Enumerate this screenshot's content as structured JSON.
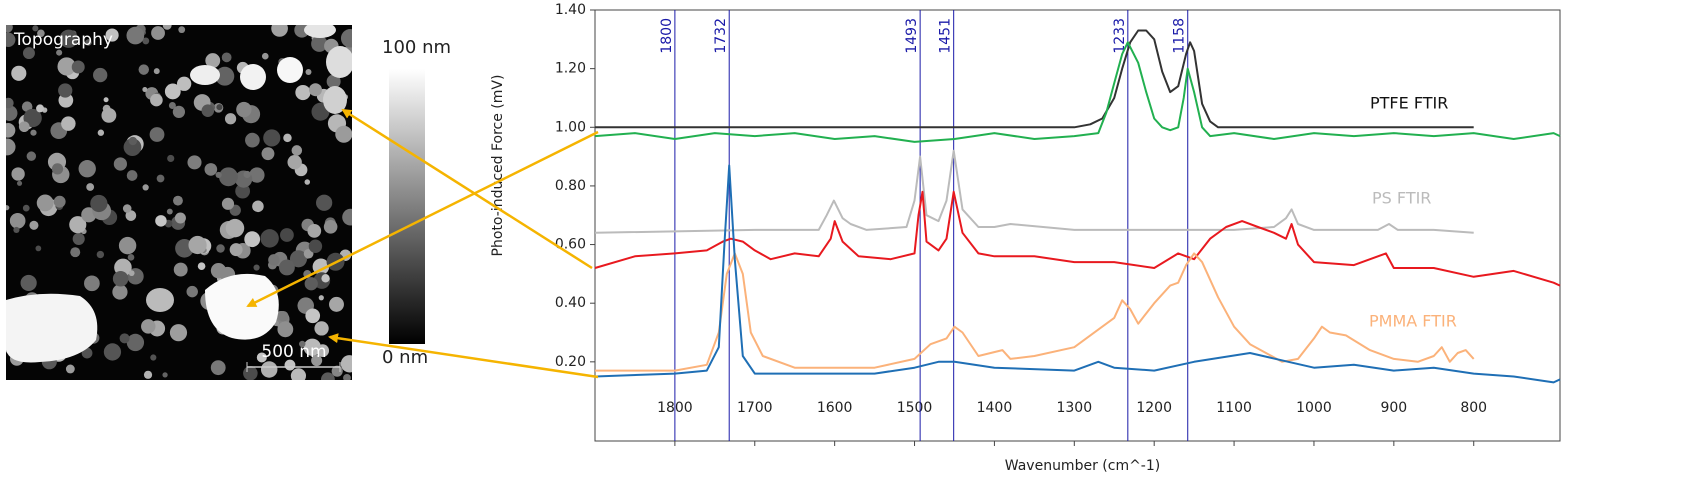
{
  "afm_image": {
    "label": "Topography",
    "scale_max": "100 nm",
    "scale_min": "0 nm",
    "scale_bar": "500 nm"
  },
  "chart_data": {
    "type": "line",
    "x_label": "Wavenumber (cm^-1)",
    "y_label": "Photo-induced Force (mV)",
    "xlim": [
      1900,
      692
    ],
    "xticks": [
      1800,
      1700,
      1600,
      1500,
      1400,
      1300,
      1200,
      1100,
      1000,
      900,
      800
    ],
    "ylim": [
      -0.07,
      1.4
    ],
    "yticks": [
      {
        "value": 0.2,
        "label": "0.20"
      },
      {
        "value": 0.4,
        "label": "0.40"
      },
      {
        "value": 0.6,
        "label": "0.60"
      },
      {
        "value": 0.8,
        "label": "0.80"
      },
      {
        "value": 1.0,
        "label": "1.00"
      },
      {
        "value": 1.2,
        "label": "1.20"
      },
      {
        "value": 1.4,
        "label": "1.40"
      }
    ],
    "reference_lines": [
      1800,
      1732,
      1493,
      1451,
      1233,
      1158
    ],
    "reference_line_color": "#1a1aa8",
    "series": [
      {
        "name": "PTFE FTIR",
        "color": "#333333",
        "x": [
          1900,
          1300,
          1280,
          1265,
          1250,
          1240,
          1230,
          1220,
          1210,
          1200,
          1190,
          1180,
          1170,
          1160,
          1155,
          1150,
          1140,
          1130,
          1120,
          1100,
          800
        ],
        "values": [
          1.0,
          1.0,
          1.01,
          1.03,
          1.1,
          1.2,
          1.29,
          1.33,
          1.33,
          1.3,
          1.19,
          1.12,
          1.14,
          1.25,
          1.29,
          1.26,
          1.08,
          1.02,
          1.0,
          1.0,
          1.0
        ]
      },
      {
        "color": "#22b050",
        "x": [
          1900,
          1850,
          1800,
          1750,
          1700,
          1650,
          1600,
          1550,
          1500,
          1450,
          1400,
          1350,
          1300,
          1270,
          1260,
          1250,
          1240,
          1233,
          1220,
          1210,
          1200,
          1190,
          1180,
          1170,
          1163,
          1158,
          1150,
          1140,
          1130,
          1100,
          1050,
          1000,
          950,
          900,
          850,
          800,
          750,
          700,
          692
        ],
        "values": [
          0.97,
          0.98,
          0.96,
          0.98,
          0.97,
          0.98,
          0.96,
          0.97,
          0.95,
          0.96,
          0.98,
          0.96,
          0.97,
          0.98,
          1.05,
          1.15,
          1.25,
          1.29,
          1.22,
          1.12,
          1.03,
          1.0,
          0.99,
          1.0,
          1.1,
          1.2,
          1.12,
          1.0,
          0.97,
          0.98,
          0.96,
          0.98,
          0.97,
          0.98,
          0.97,
          0.98,
          0.96,
          0.98,
          0.97
        ]
      },
      {
        "name": "PS FTIR",
        "color": "#bbbbbb",
        "x": [
          1900,
          1700,
          1620,
          1610,
          1601,
          1590,
          1580,
          1560,
          1510,
          1500,
          1493,
          1485,
          1470,
          1460,
          1451,
          1440,
          1420,
          1400,
          1380,
          1300,
          1200,
          1100,
          1050,
          1035,
          1028,
          1020,
          1000,
          920,
          906,
          895,
          850,
          800
        ],
        "values": [
          0.64,
          0.65,
          0.65,
          0.7,
          0.75,
          0.69,
          0.67,
          0.65,
          0.66,
          0.75,
          0.9,
          0.7,
          0.68,
          0.75,
          0.92,
          0.72,
          0.66,
          0.66,
          0.67,
          0.65,
          0.65,
          0.65,
          0.66,
          0.69,
          0.72,
          0.67,
          0.65,
          0.65,
          0.67,
          0.65,
          0.65,
          0.64
        ]
      },
      {
        "color": "#e8191f",
        "x": [
          1900,
          1850,
          1800,
          1760,
          1740,
          1730,
          1715,
          1700,
          1680,
          1650,
          1620,
          1605,
          1600,
          1590,
          1570,
          1530,
          1500,
          1495,
          1490,
          1485,
          1470,
          1460,
          1451,
          1440,
          1420,
          1400,
          1350,
          1300,
          1250,
          1200,
          1170,
          1150,
          1130,
          1110,
          1090,
          1070,
          1050,
          1035,
          1028,
          1020,
          1000,
          950,
          910,
          900,
          850,
          800,
          750,
          700,
          692
        ],
        "values": [
          0.52,
          0.56,
          0.57,
          0.58,
          0.61,
          0.62,
          0.61,
          0.58,
          0.55,
          0.57,
          0.56,
          0.62,
          0.68,
          0.61,
          0.56,
          0.55,
          0.57,
          0.7,
          0.78,
          0.61,
          0.58,
          0.62,
          0.78,
          0.64,
          0.57,
          0.56,
          0.56,
          0.54,
          0.54,
          0.52,
          0.57,
          0.55,
          0.62,
          0.66,
          0.68,
          0.66,
          0.64,
          0.62,
          0.67,
          0.6,
          0.54,
          0.53,
          0.57,
          0.52,
          0.52,
          0.49,
          0.51,
          0.47,
          0.46
        ]
      },
      {
        "name": "PMMA FTIR",
        "color": "#fbb27a",
        "x": [
          1900,
          1800,
          1760,
          1745,
          1735,
          1725,
          1715,
          1705,
          1690,
          1650,
          1550,
          1500,
          1480,
          1460,
          1450,
          1440,
          1420,
          1390,
          1380,
          1350,
          1300,
          1270,
          1250,
          1240,
          1230,
          1220,
          1200,
          1180,
          1170,
          1160,
          1150,
          1140,
          1120,
          1100,
          1080,
          1060,
          1040,
          1020,
          1000,
          990,
          980,
          960,
          930,
          900,
          870,
          850,
          840,
          830,
          820,
          810,
          800
        ],
        "values": [
          0.17,
          0.17,
          0.19,
          0.3,
          0.5,
          0.57,
          0.5,
          0.3,
          0.22,
          0.18,
          0.18,
          0.21,
          0.26,
          0.28,
          0.32,
          0.3,
          0.22,
          0.24,
          0.21,
          0.22,
          0.25,
          0.31,
          0.35,
          0.41,
          0.38,
          0.33,
          0.4,
          0.46,
          0.47,
          0.53,
          0.57,
          0.54,
          0.42,
          0.32,
          0.26,
          0.23,
          0.2,
          0.21,
          0.28,
          0.32,
          0.3,
          0.29,
          0.24,
          0.21,
          0.2,
          0.22,
          0.25,
          0.2,
          0.23,
          0.24,
          0.21
        ]
      },
      {
        "color": "#1f6fb5",
        "x": [
          1900,
          1800,
          1760,
          1745,
          1738,
          1732,
          1725,
          1715,
          1700,
          1650,
          1550,
          1500,
          1470,
          1450,
          1400,
          1300,
          1270,
          1250,
          1200,
          1150,
          1080,
          1000,
          950,
          900,
          850,
          800,
          750,
          700,
          692
        ],
        "values": [
          0.15,
          0.16,
          0.17,
          0.25,
          0.6,
          0.87,
          0.55,
          0.22,
          0.16,
          0.16,
          0.16,
          0.18,
          0.2,
          0.2,
          0.18,
          0.17,
          0.2,
          0.18,
          0.17,
          0.2,
          0.23,
          0.18,
          0.19,
          0.17,
          0.18,
          0.16,
          0.15,
          0.13,
          0.14
        ]
      }
    ]
  }
}
